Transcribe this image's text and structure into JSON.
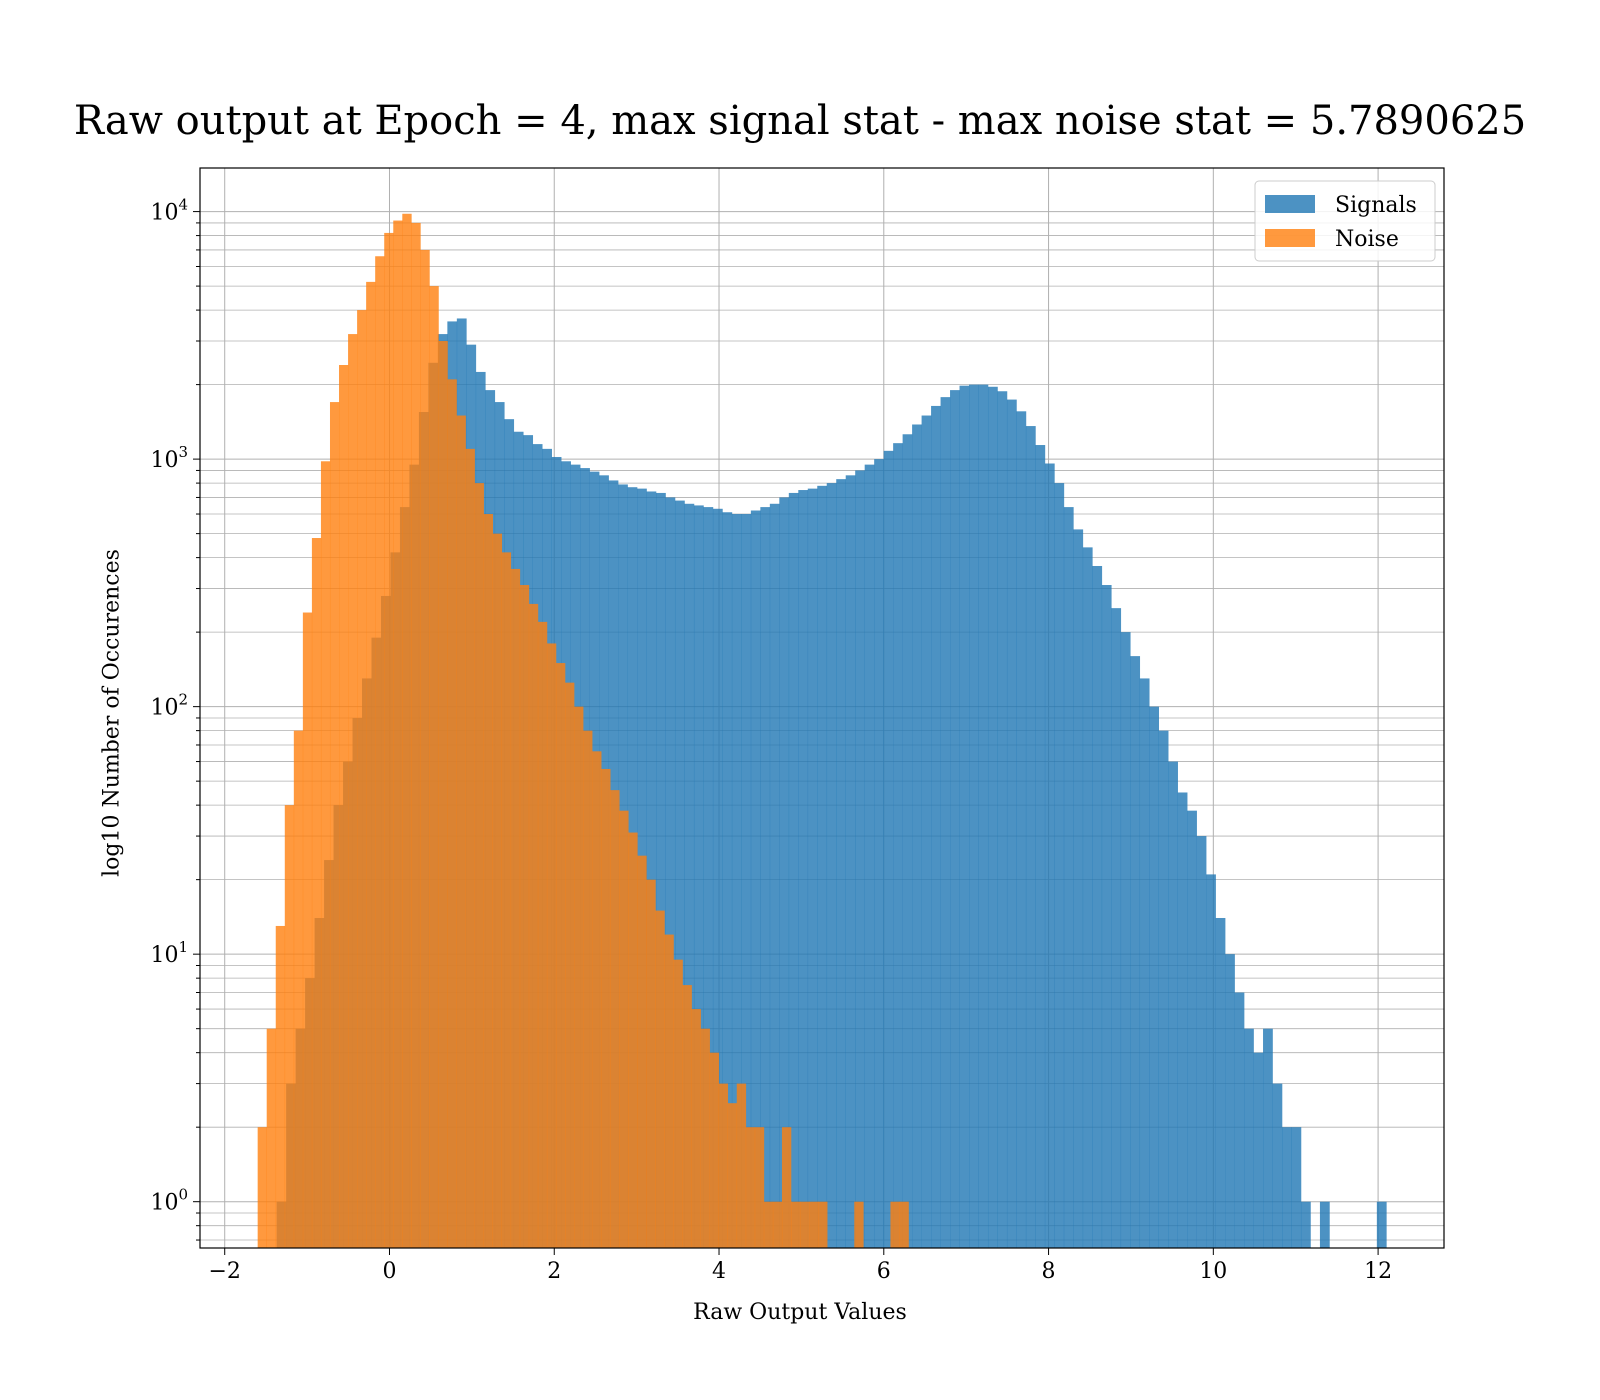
{
  "chart_data": {
    "type": "bar",
    "title": "Raw output at Epoch = 4, max signal stat - max noise stat = 5.7890625",
    "xlabel": "Raw Output Values",
    "ylabel": "log10 Number of Occurences",
    "xlim": [
      -2.3,
      12.8
    ],
    "ylim": [
      0.65,
      15000
    ],
    "yscale": "log",
    "grid": true,
    "legend": {
      "position": "top-right",
      "entries": [
        "Signals",
        "Noise"
      ]
    },
    "x_ticks": [
      "−2",
      "0",
      "2",
      "4",
      "6",
      "8",
      "10",
      "12"
    ],
    "x_tick_values": [
      -2,
      0,
      2,
      4,
      6,
      8,
      10,
      12
    ],
    "y_ticks": [
      {
        "base": "10",
        "exp": "0",
        "value": 1
      },
      {
        "base": "10",
        "exp": "1",
        "value": 10
      },
      {
        "base": "10",
        "exp": "2",
        "value": 100
      },
      {
        "base": "10",
        "exp": "3",
        "value": 1000
      },
      {
        "base": "10",
        "exp": "4",
        "value": 10000
      }
    ],
    "series": [
      {
        "name": "Signals",
        "color": "#1f77b4",
        "bin_edges": [
          -1.6,
          12.1
        ],
        "counts": [
          0,
          0,
          1,
          3,
          5,
          8,
          14,
          24,
          40,
          60,
          90,
          130,
          190,
          280,
          420,
          640,
          950,
          1550,
          2450,
          3200,
          3600,
          3700,
          2900,
          2250,
          1900,
          1700,
          1450,
          1290,
          1250,
          1150,
          1100,
          1020,
          980,
          950,
          920,
          890,
          860,
          820,
          790,
          770,
          760,
          740,
          730,
          700,
          680,
          660,
          650,
          640,
          630,
          610,
          600,
          600,
          620,
          640,
          660,
          700,
          730,
          750,
          760,
          780,
          800,
          830,
          860,
          900,
          950,
          1000,
          1080,
          1160,
          1260,
          1380,
          1500,
          1640,
          1780,
          1900,
          1980,
          2000,
          2000,
          1960,
          1880,
          1740,
          1560,
          1360,
          1140,
          960,
          800,
          640,
          520,
          440,
          370,
          310,
          250,
          200,
          160,
          130,
          100,
          80,
          60,
          45,
          38,
          30,
          21,
          14,
          10,
          7,
          5,
          4,
          5,
          3,
          2,
          2,
          1,
          0,
          1,
          0,
          0,
          0,
          0,
          0,
          1
        ]
      },
      {
        "name": "Noise",
        "color": "#ff7f0e",
        "bin_edges": [
          -1.6,
          6.3
        ],
        "counts": [
          2,
          5,
          13,
          40,
          80,
          240,
          480,
          980,
          1700,
          2400,
          3200,
          4000,
          5200,
          6600,
          8200,
          9200,
          9800,
          9000,
          7000,
          5000,
          3000,
          2100,
          1500,
          1100,
          800,
          600,
          500,
          420,
          360,
          310,
          260,
          220,
          180,
          150,
          125,
          100,
          80,
          66,
          56,
          46,
          38,
          31,
          25,
          20,
          15,
          12,
          9.5,
          7.5,
          6,
          5,
          4,
          3,
          2.5,
          3,
          2,
          2,
          1,
          1,
          2,
          1,
          1,
          1,
          1,
          0,
          0,
          0,
          1,
          0,
          0,
          0,
          1,
          1
        ]
      }
    ]
  }
}
